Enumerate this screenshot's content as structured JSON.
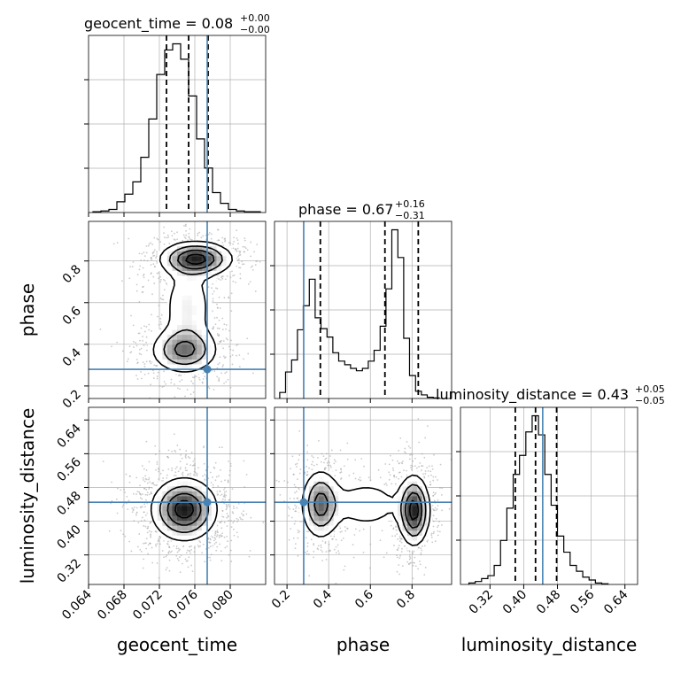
{
  "chart_data": {
    "type": "corner",
    "parameters": [
      "geocent_time",
      "phase",
      "luminosity_distance"
    ],
    "axis_labels": {
      "geocent_time": "geocent_time",
      "phase": "phase",
      "luminosity_distance": "luminosity_distance"
    },
    "ranges": {
      "geocent_time": [
        0.064,
        0.084
      ],
      "phase": [
        0.14,
        0.99
      ],
      "luminosity_distance": [
        0.25,
        0.67
      ]
    },
    "ticks": {
      "geocent_time": [
        "0.064",
        "0.068",
        "0.072",
        "0.076",
        "0.080"
      ],
      "phase": [
        "0.2",
        "0.4",
        "0.6",
        "0.8"
      ],
      "luminosity_distance": [
        "0.32",
        "0.40",
        "0.48",
        "0.56",
        "0.64"
      ]
    },
    "titles": [
      {
        "name": "geocent_time",
        "value": "0.08",
        "plus": "+0.00",
        "minus": "−0.00"
      },
      {
        "name": "phase",
        "value": "0.67",
        "plus": "+0.16",
        "minus": "−0.31"
      },
      {
        "name": "luminosity_distance",
        "value": "0.43",
        "plus": "+0.05",
        "minus": "−0.05"
      }
    ],
    "truths": {
      "geocent_time": 0.0774,
      "phase": 0.28,
      "luminosity_distance": 0.445
    },
    "quantiles": {
      "geocent_time": [
        0.0728,
        0.0753,
        0.0775
      ],
      "phase": [
        0.36,
        0.67,
        0.83
      ],
      "luminosity_distance": [
        0.38,
        0.428,
        0.478
      ]
    },
    "histograms": {
      "geocent_time": {
        "edges": [
          0.0645,
          0.0654,
          0.0663,
          0.0672,
          0.0681,
          0.069,
          0.0699,
          0.0708,
          0.0717,
          0.0726,
          0.0735,
          0.0744,
          0.0753,
          0.0762,
          0.0771,
          0.078,
          0.0789,
          0.0798,
          0.0807,
          0.0816,
          0.0825,
          0.0834
        ],
        "counts": [
          0.5,
          1,
          2,
          7,
          12,
          20,
          36,
          61,
          90,
          106,
          110,
          100,
          76,
          48,
          29,
          13,
          6,
          2,
          1,
          0.5,
          0.5
        ]
      },
      "phase": {
        "edges": [
          0.165,
          0.193,
          0.222,
          0.25,
          0.278,
          0.307,
          0.335,
          0.363,
          0.392,
          0.42,
          0.448,
          0.477,
          0.505,
          0.533,
          0.562,
          0.59,
          0.618,
          0.647,
          0.675,
          0.703,
          0.732,
          0.76,
          0.788,
          0.817,
          0.845,
          0.873,
          0.902,
          0.93
        ],
        "counts": [
          5,
          22,
          32,
          57,
          77,
          99,
          67,
          58,
          51,
          38,
          31,
          28,
          25,
          23,
          25,
          31,
          40,
          60,
          91,
          140,
          117,
          50,
          19,
          6,
          3,
          1,
          0.5
        ]
      },
      "luminosity_distance": {
        "edges": [
          0.27,
          0.285,
          0.3,
          0.315,
          0.33,
          0.345,
          0.36,
          0.375,
          0.39,
          0.405,
          0.42,
          0.435,
          0.45,
          0.465,
          0.48,
          0.495,
          0.51,
          0.525,
          0.54,
          0.555,
          0.57,
          0.585,
          0.6
        ],
        "counts": [
          1,
          2,
          4,
          6,
          13,
          30,
          52,
          75,
          88,
          104,
          115,
          102,
          75,
          54,
          33,
          22,
          13,
          9,
          5,
          3,
          1,
          0.5
        ]
      }
    },
    "density_modes": {
      "phase_vs_geocent_time": [
        {
          "x": 0.0762,
          "y": 0.81,
          "sx": 0.0022,
          "sy": 0.045,
          "w": 1.0
        },
        {
          "x": 0.0748,
          "y": 0.37,
          "sx": 0.0021,
          "sy": 0.06,
          "w": 0.7
        },
        {
          "x": 0.0752,
          "y": 0.58,
          "sx": 0.0018,
          "sy": 0.13,
          "w": 0.35
        }
      ],
      "luminosity_distance_vs_geocent_time": [
        {
          "x": 0.0748,
          "y": 0.428,
          "sx": 0.002,
          "sy": 0.04,
          "w": 1.0
        }
      ],
      "luminosity_distance_vs_phase": [
        {
          "x": 0.36,
          "y": 0.44,
          "sx": 0.05,
          "sy": 0.045,
          "w": 0.75
        },
        {
          "x": 0.81,
          "y": 0.425,
          "sx": 0.04,
          "sy": 0.045,
          "w": 1.0
        },
        {
          "x": 0.58,
          "y": 0.44,
          "sx": 0.12,
          "sy": 0.04,
          "w": 0.3
        }
      ]
    },
    "grid": true,
    "colors": {
      "truth": "#4682b4",
      "histogram": "#000000",
      "grid": "#b0b0b0",
      "points": "#9e9e9e"
    }
  }
}
